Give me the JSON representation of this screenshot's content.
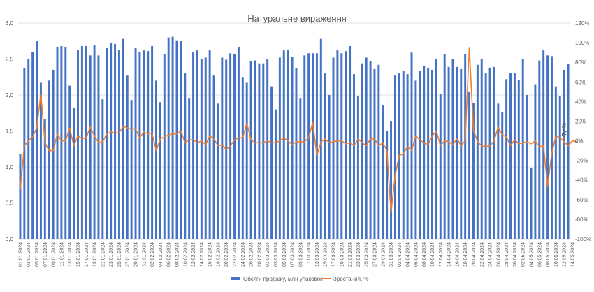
{
  "chart_data": {
    "type": "bar",
    "title": "Натуральне вираження",
    "grid": true,
    "legend_position": "bottom",
    "colors": {
      "bars": "#4472c4",
      "line": "#ed7d31"
    },
    "y_left": {
      "min": 0,
      "max": 3,
      "step": 0.5,
      "ticks": [
        "0,0",
        "0,5",
        "1,0",
        "1,5",
        "2,0",
        "2,5",
        "3,0"
      ]
    },
    "y_right": {
      "min": -100,
      "max": 120,
      "step": 20,
      "ticks": [
        "-100%",
        "-80%",
        "-60%",
        "-40%",
        "-20%",
        "0%",
        "20%",
        "40%",
        "60%",
        "80%",
        "100%",
        "120%"
      ]
    },
    "tick_dates": [
      "01.01.2024",
      "03.01.2024",
      "05.01.2024",
      "07.01.2024",
      "09.01.2024",
      "11.01.2024",
      "13.01.2024",
      "15.01.2024",
      "17.01.2024",
      "19.01.2024",
      "21.01.2024",
      "23.01.2024",
      "25.01.2024",
      "27.01.2024",
      "29.01.2024",
      "31.01.2024",
      "02.02.2024",
      "04.02.2024",
      "06.02.2024",
      "08.02.2024",
      "10.02.2024",
      "12.02.2024",
      "14.02.2024",
      "16.02.2024",
      "18.02.2024",
      "20.02.2024",
      "22.02.2024",
      "24.02.2024",
      "26.02.2024",
      "28.02.2024",
      "01.03.2024",
      "03.03.2024",
      "05.03.2024",
      "07.03.2024",
      "09.03.2024",
      "11.03.2024",
      "13.03.2024",
      "15.03.2024",
      "17.03.2024",
      "19.03.2024",
      "21.03.2024",
      "23.03.2024",
      "25.03.2024",
      "27.03.2024",
      "29.03.2024",
      "31.03.2024",
      "02.04.2024",
      "04.04.2024",
      "06.04.2024",
      "08.04.2024",
      "10.04.2024",
      "12.04.2024",
      "14.04.2024",
      "16.04.2024",
      "18.04.2024",
      "20.04.2024",
      "22.04.2024",
      "24.04.2024",
      "26.04.2024",
      "28.04.2024",
      "30.04.2024",
      "02.05.2024",
      "04.05.2024",
      "06.05.2024",
      "08.05.2024",
      "10.05.2024",
      "12.05.2024",
      "14.05.2024"
    ],
    "series": [
      {
        "name": "Обсяги продажу, млн упаковок",
        "type": "bar",
        "axis": "left",
        "values": [
          1.18,
          2.37,
          2.5,
          2.6,
          2.75,
          2.17,
          1.66,
          2.2,
          2.35,
          2.67,
          2.68,
          2.67,
          2.13,
          1.82,
          2.63,
          2.68,
          2.68,
          2.55,
          2.69,
          2.55,
          1.94,
          2.66,
          2.72,
          2.71,
          2.63,
          2.78,
          2.27,
          1.93,
          2.65,
          2.6,
          2.62,
          2.61,
          2.68,
          2.2,
          1.9,
          2.57,
          2.8,
          2.81,
          2.76,
          2.75,
          2.3,
          1.95,
          2.6,
          2.62,
          2.5,
          2.52,
          2.62,
          2.27,
          1.88,
          2.52,
          2.49,
          2.58,
          2.57,
          2.67,
          2.25,
          2.17,
          2.47,
          2.48,
          2.44,
          2.44,
          2.5,
          2.12,
          1.8,
          2.52,
          2.62,
          2.63,
          2.53,
          2.37,
          1.95,
          2.55,
          2.58,
          2.58,
          2.58,
          2.78,
          2.3,
          2.0,
          2.52,
          2.62,
          2.58,
          2.61,
          2.68,
          2.29,
          1.99,
          2.44,
          2.52,
          2.47,
          2.36,
          2.42,
          1.86,
          1.5,
          1.64,
          2.27,
          2.3,
          2.33,
          2.29,
          2.59,
          2.2,
          2.33,
          2.41,
          2.38,
          2.35,
          2.5,
          2.01,
          2.57,
          2.39,
          2.5,
          2.39,
          2.36,
          2.57,
          2.05,
          1.89,
          2.42,
          2.5,
          2.3,
          2.38,
          2.39,
          1.88,
          1.76,
          2.22,
          2.3,
          2.3,
          2.21,
          2.5,
          2.0,
          0.99,
          2.15,
          2.48,
          2.62,
          2.55,
          2.54,
          2.12,
          1.98,
          2.35,
          2.43
        ]
      },
      {
        "name": "Зростання, %",
        "type": "line",
        "axis": "right",
        "values": [
          -50,
          -5,
          0,
          4,
          13,
          48,
          -2,
          -10,
          -10,
          7,
          0,
          0,
          13,
          -5,
          5,
          2,
          3,
          14,
          5,
          -2,
          -1,
          7,
          9,
          8,
          8,
          15,
          13,
          12,
          12,
          3,
          9,
          7,
          8,
          -10,
          2,
          4,
          6,
          7,
          7,
          10,
          -2,
          1,
          1,
          -2,
          0,
          -4,
          5,
          2,
          -5,
          -4,
          -9,
          -5,
          1,
          3,
          3,
          18,
          1,
          -2,
          -2,
          -2,
          0,
          -2,
          -2,
          0,
          3,
          0,
          -4,
          -1,
          -1,
          -1,
          3,
          19,
          -15,
          -1,
          2,
          -2,
          -1,
          0,
          0,
          -3,
          -2,
          -5,
          2,
          -2,
          -5,
          2,
          2,
          -5,
          -2,
          -10,
          -73,
          -35,
          -15,
          -13,
          -6,
          -10,
          5,
          1,
          -2,
          -4,
          5,
          10,
          -5,
          0,
          -1,
          -4,
          2,
          -5,
          0,
          95,
          11,
          -1,
          -5,
          -6,
          -5,
          0,
          14,
          6,
          4,
          -5,
          1,
          -3,
          -2,
          -1,
          -3,
          0,
          -6,
          -5,
          -46,
          -13,
          5,
          3,
          -1,
          -5,
          0,
          -1
        ]
      }
    ],
    "annotations": [
      {
        "text": "-7,4%"
      }
    ]
  }
}
